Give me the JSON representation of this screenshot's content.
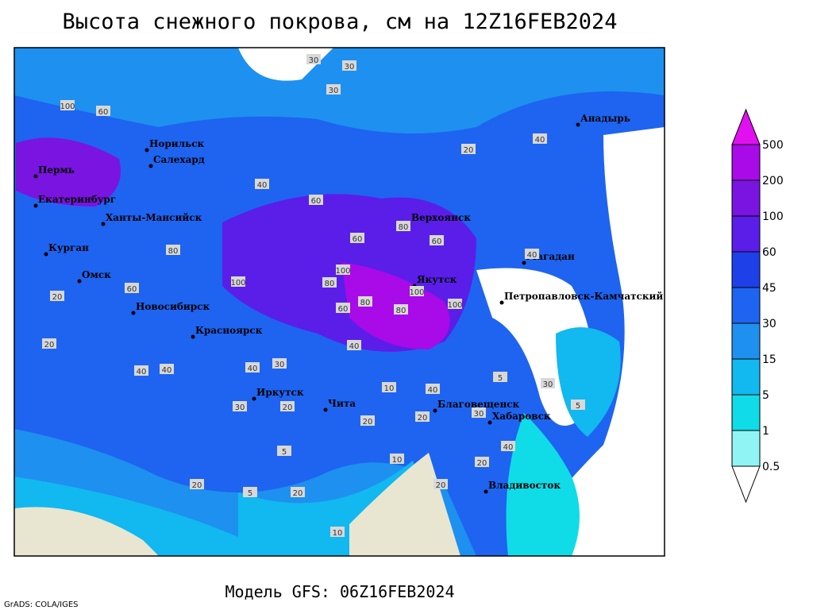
{
  "header": {
    "title": "Высота снежного покрова, см на 12Z16FEB2024"
  },
  "footer": {
    "model": "Модель GFS: 06Z16FEB2024",
    "credit": "GrADS: COLA/IGES"
  },
  "legend": {
    "levels": [
      0.5,
      1,
      5,
      15,
      30,
      45,
      60,
      100,
      200,
      500
    ],
    "colors": [
      "#ffffff",
      "#90f4f4",
      "#10dce8",
      "#12b8f0",
      "#1e90f0",
      "#1e64f0",
      "#1e40e8",
      "#5a1ee8",
      "#7a14e0",
      "#a80ae8",
      "#e010f0"
    ]
  },
  "cities": [
    "Норильск",
    "Салехард",
    "Пермь",
    "Екатеринбург",
    "Ханты-Мансийск",
    "Курган",
    "Омск",
    "Новосибирск",
    "Красноярск",
    "Иркутск",
    "Чита",
    "Верхоянск",
    "Якутск",
    "Магадан",
    "Анадырь",
    "Петропавловск-Камчатский",
    "Благовещенск",
    "Хабаровск",
    "Владивосток"
  ],
  "contour_labels": [
    "100",
    "60",
    "30",
    "30",
    "30",
    "20",
    "40",
    "40",
    "60",
    "80",
    "40",
    "60",
    "60",
    "80",
    "100",
    "100",
    "80",
    "100",
    "100",
    "60",
    "80",
    "80",
    "40",
    "40",
    "30",
    "40",
    "20",
    "20",
    "20",
    "30",
    "20",
    "10",
    "20",
    "5",
    "5",
    "10",
    "20",
    "20",
    "40",
    "30",
    "30",
    "5",
    "60",
    "40",
    "40",
    "20",
    "10",
    "5",
    "20"
  ]
}
